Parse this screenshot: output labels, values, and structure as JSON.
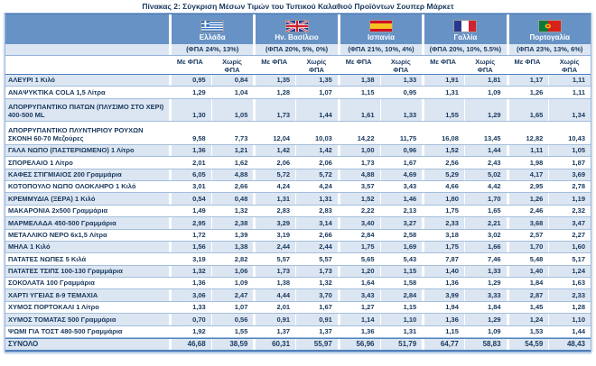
{
  "title": "Πίνακας 2: Σύγκριση Μέσων Τιμών του Τυπικού Καλαθιού Προϊόντων Σουπερ Μάρκετ",
  "colors": {
    "header_band_blue": "#6792c5",
    "stripe_light_blue": "#dce6f2",
    "text_navy": "#17375d",
    "row_separator_blue": "#a3bedc",
    "accent_border_blue": "#4f81bd"
  },
  "table": {
    "countries": [
      {
        "name": "Ελλάδα",
        "vat": "(ΦΠΑ 24%, 13%)",
        "flag_icon": "greece-flag"
      },
      {
        "name": "Ην. Βασίλειο",
        "vat": "(ΦΠΑ 20%, 5%, 0%)",
        "flag_icon": "uk-flag"
      },
      {
        "name": "Ισπανία",
        "vat": "(ΦΠΑ 21%, 10%, 4%)",
        "flag_icon": "spain-flag"
      },
      {
        "name": "Γαλλία",
        "vat": "(ΦΠΑ 20%, 10%, 5.5%)",
        "flag_icon": "france-flag"
      },
      {
        "name": "Πορτογαλία",
        "vat": "(ΦΠΑ 23%, 13%, 6%)",
        "flag_icon": "portugal-flag"
      }
    ],
    "subheaders": {
      "with_vat": "Με ΦΠΑ",
      "without_vat": "Χωρίς ΦΠΑ"
    },
    "rows": [
      {
        "label": "ΑΛΕΥΡΙ 1 Κιλό",
        "values": [
          "0,95",
          "0,84",
          "1,35",
          "1,35",
          "1,38",
          "1,33",
          "1,91",
          "1,81",
          "1,17",
          "1,11"
        ]
      },
      {
        "label": "ΑΝΑΨΥΚΤΙΚΑ COLA 1,5 Λίτρα",
        "values": [
          "1,29",
          "1,04",
          "1,28",
          "1,07",
          "1,15",
          "0,95",
          "1,31",
          "1,09",
          "1,26",
          "1,11"
        ]
      },
      {
        "label": "ΑΠΟΡΡΥΠΑΝΤΙΚΟ ΠΙΑΤΩΝ (ΠΛΥΣΙΜΟ ΣΤΟ ΧΕΡΙ) 400-500 ML",
        "values": [
          "1,30",
          "1,05",
          "1,73",
          "1,44",
          "1,61",
          "1,33",
          "1,55",
          "1,29",
          "1,65",
          "1,34"
        ]
      },
      {
        "label": "ΑΠΟΡΡΥΠΑΝΤΙΚΟ ΠΛΥΝΤΗΡΙΟΥ ΡΟΥΧΩΝ ΣΚΟΝΗ 60-70 Μεζούρες",
        "values": [
          "9,58",
          "7,73",
          "12,04",
          "10,03",
          "14,22",
          "11,75",
          "16,08",
          "13,45",
          "12,82",
          "10,43"
        ]
      },
      {
        "label": "ΓΑΛΑ ΝΩΠΟ (ΠΑΣΤΕΡΙΩΜΕΝΟ) 1 Λίτρο",
        "values": [
          "1,36",
          "1,21",
          "1,42",
          "1,42",
          "1,00",
          "0,96",
          "1,52",
          "1,44",
          "1,11",
          "1,05"
        ]
      },
      {
        "label": "ΣΠΟΡΕΛΑΙΟ 1 Λίτρο",
        "values": [
          "2,01",
          "1,62",
          "2,06",
          "2,06",
          "1,73",
          "1,67",
          "2,56",
          "2,43",
          "1,98",
          "1,87"
        ]
      },
      {
        "label": "ΚΑΦΕΣ ΣΤΙΓΜΙΑΙΟΣ 200 Γραμμάρια",
        "values": [
          "6,05",
          "4,88",
          "5,72",
          "5,72",
          "4,88",
          "4,69",
          "5,29",
          "5,02",
          "4,17",
          "3,69"
        ]
      },
      {
        "label": "ΚΟΤΟΠΟΥΛΟ ΝΩΠΟ ΟΛΟΚΛΗΡΟ 1 Κιλό",
        "values": [
          "3,01",
          "2,66",
          "4,24",
          "4,24",
          "3,57",
          "3,43",
          "4,66",
          "4,42",
          "2,95",
          "2,78"
        ]
      },
      {
        "label": "ΚΡΕΜΜΥΔΙΑ (ΞΕΡΑ) 1 Κιλό",
        "values": [
          "0,54",
          "0,48",
          "1,31",
          "1,31",
          "1,52",
          "1,46",
          "1,80",
          "1,70",
          "1,26",
          "1,19"
        ]
      },
      {
        "label": "ΜΑΚΑΡΟΝΙΑ 2x500 Γραμμάρια",
        "values": [
          "1,49",
          "1,32",
          "2,83",
          "2,83",
          "2,22",
          "2,13",
          "1,75",
          "1,65",
          "2,46",
          "2,32"
        ]
      },
      {
        "label": "ΜΑΡΜΕΛΑΔΑ 450-500 Γραμμάρια",
        "values": [
          "2,95",
          "2,38",
          "3,29",
          "3,14",
          "3,40",
          "3,27",
          "2,33",
          "2,21",
          "3,68",
          "3,47"
        ]
      },
      {
        "label": "ΜΕΤΑΛΛΙΚΟ ΝΕΡΟ 6x1,5 Λίτρα",
        "values": [
          "1,72",
          "1,39",
          "3,19",
          "2,66",
          "2,84",
          "2,58",
          "3,18",
          "3,02",
          "2,57",
          "2,27"
        ]
      },
      {
        "label": "ΜΗΛΑ 1 Κιλό",
        "values": [
          "1,56",
          "1,38",
          "2,44",
          "2,44",
          "1,75",
          "1,69",
          "1,75",
          "1,66",
          "1,70",
          "1,60"
        ]
      },
      {
        "label": "ΠΑΤΑΤΕΣ ΝΩΠΕΣ 5 Κιλά",
        "values": [
          "3,19",
          "2,82",
          "5,57",
          "5,57",
          "5,65",
          "5,43",
          "7,87",
          "7,46",
          "5,48",
          "5,17"
        ]
      },
      {
        "label": "ΠΑΤΑΤΕΣ ΤΣΙΠΣ 100-130 Γραμμάρια",
        "values": [
          "1,32",
          "1,06",
          "1,73",
          "1,73",
          "1,20",
          "1,15",
          "1,40",
          "1,33",
          "1,40",
          "1,24"
        ]
      },
      {
        "label": "ΣΟΚΟΛΑΤΑ 100 Γραμμάρια",
        "values": [
          "1,36",
          "1,09",
          "1,38",
          "1,32",
          "1,64",
          "1,58",
          "1,36",
          "1,29",
          "1,84",
          "1,63"
        ]
      },
      {
        "label": "ΧΑΡΤΙ ΥΓΕΙΑΣ 8-9 ΤΕΜΑΧΙΑ",
        "values": [
          "3,06",
          "2,47",
          "4,44",
          "3,70",
          "3,43",
          "2,84",
          "3,99",
          "3,33",
          "2,87",
          "2,33"
        ]
      },
      {
        "label": "ΧΥΜΟΣ ΠΟΡΤΟΚΑΛΙ 1 Λίτρο",
        "values": [
          "1,33",
          "1,07",
          "2,01",
          "1,67",
          "1,27",
          "1,15",
          "1,94",
          "1,84",
          "1,45",
          "1,28"
        ]
      },
      {
        "label": "ΧΥΜΟΣ ΤΟΜΑΤΑΣ 500 Γραμμάρια",
        "values": [
          "0,70",
          "0,56",
          "0,91",
          "0,91",
          "1,14",
          "1,10",
          "1,36",
          "1,29",
          "1,24",
          "1,10"
        ]
      },
      {
        "label": "ΨΩΜΙ ΓΙΑ ΤΟΣΤ 480-500 Γραμμάρια",
        "values": [
          "1,92",
          "1,55",
          "1,37",
          "1,37",
          "1,36",
          "1,31",
          "1,15",
          "1,09",
          "1,53",
          "1,44"
        ]
      }
    ],
    "total": {
      "label": "ΣΥΝΟΛΟ",
      "values": [
        "46,68",
        "38,59",
        "60,31",
        "55,97",
        "56,96",
        "51,79",
        "64,77",
        "58,83",
        "54,59",
        "48,43"
      ]
    }
  }
}
